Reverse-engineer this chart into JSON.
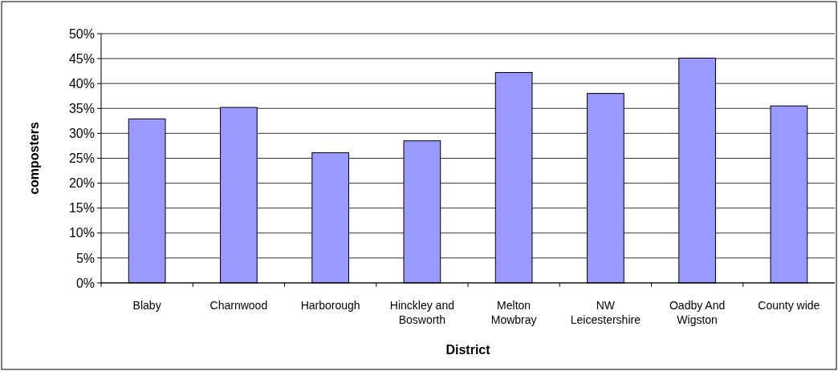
{
  "chart_data": {
    "type": "bar",
    "xlabel": "District",
    "ylabel": "composters",
    "categories": [
      "Blaby",
      "Charnwood",
      "Harborough",
      "Hinckley and Bosworth",
      "Melton Mowbray",
      "NW Leicestershire",
      "Oadby And Wigston",
      "County wide"
    ],
    "values": [
      32.9,
      35.2,
      26.1,
      28.5,
      42.2,
      38.0,
      45.1,
      35.5
    ],
    "color": "#9999ff",
    "ylim": [
      0,
      50
    ],
    "yticks": [
      {
        "value": 0,
        "label": "0%"
      },
      {
        "value": 5,
        "label": "5%"
      },
      {
        "value": 10,
        "label": "10%"
      },
      {
        "value": 15,
        "label": "15%"
      },
      {
        "value": 20,
        "label": "20%"
      },
      {
        "value": 25,
        "label": "25%"
      },
      {
        "value": 30,
        "label": "30%"
      },
      {
        "value": 35,
        "label": "35%"
      },
      {
        "value": 40,
        "label": "40%"
      },
      {
        "value": 45,
        "label": "45%"
      },
      {
        "value": 50,
        "label": "50%"
      }
    ],
    "grid": "y"
  }
}
